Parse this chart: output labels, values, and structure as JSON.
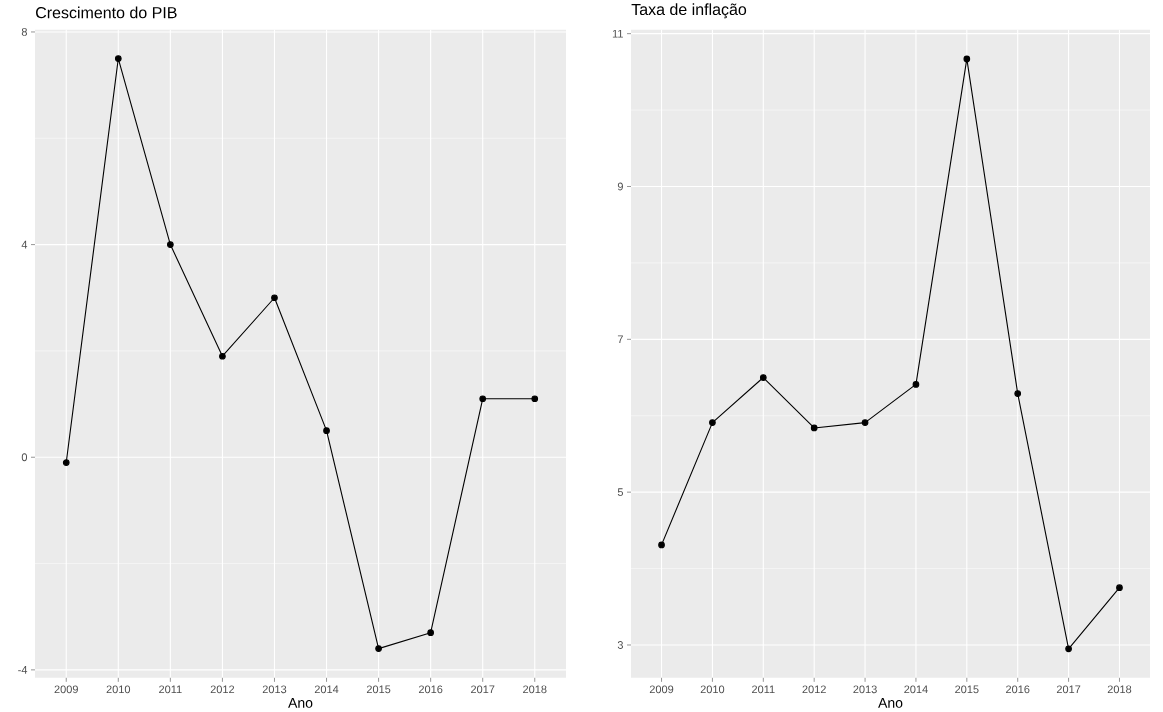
{
  "chart_data": [
    {
      "type": "line",
      "title": "Crescimento do PIB",
      "xlabel": "Ano",
      "categories": [
        "2009",
        "2010",
        "2011",
        "2012",
        "2013",
        "2014",
        "2015",
        "2016",
        "2017",
        "2018"
      ],
      "values": [
        -0.1,
        7.5,
        4.0,
        1.9,
        3.0,
        0.5,
        -3.6,
        -3.3,
        1.1,
        1.1
      ],
      "color": "#000000",
      "ylim": [
        -4.15,
        8.04
      ],
      "yticks": [
        -4,
        0,
        4,
        8
      ],
      "grid": true,
      "marker": "circle",
      "line_style": "solid"
    },
    {
      "type": "line",
      "title": "Taxa de inflação",
      "xlabel": "Ano",
      "categories": [
        "2009",
        "2010",
        "2011",
        "2012",
        "2013",
        "2014",
        "2015",
        "2016",
        "2017",
        "2018"
      ],
      "values": [
        4.31,
        5.91,
        6.5,
        5.84,
        5.91,
        6.41,
        10.67,
        6.29,
        2.95,
        3.75
      ],
      "color": "#000000",
      "ylim": [
        2.57,
        11.05
      ],
      "yticks": [
        3,
        5,
        7,
        9,
        11
      ],
      "grid": true,
      "marker": "circle",
      "line_style": "solid"
    }
  ]
}
